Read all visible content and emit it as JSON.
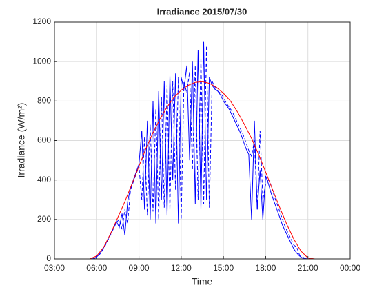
{
  "chart_data": {
    "type": "line",
    "title": "Irradiance 2015/07/30",
    "xlabel": "Time",
    "ylabel": "Irradiance (W/m²)",
    "xlim": [
      3,
      24
    ],
    "xticks": [
      {
        "value": 3,
        "label": "03:00"
      },
      {
        "value": 6,
        "label": "06:00"
      },
      {
        "value": 9,
        "label": "09:00"
      },
      {
        "value": 12,
        "label": "12:00"
      },
      {
        "value": 15,
        "label": "15:00"
      },
      {
        "value": 18,
        "label": "18:00"
      },
      {
        "value": 21,
        "label": "21:00"
      },
      {
        "value": 24,
        "label": "00:00"
      }
    ],
    "ylim": [
      0,
      1200
    ],
    "yticks": [
      0,
      200,
      400,
      600,
      800,
      1000,
      1200
    ],
    "grid": true,
    "x": [
      5.4,
      5.6,
      5.8,
      6.0,
      6.2,
      6.4,
      6.6,
      6.8,
      7.0,
      7.2,
      7.4,
      7.6,
      7.8,
      8.0,
      8.2,
      8.4,
      8.6,
      8.8,
      9.0,
      9.2,
      9.4,
      9.6,
      9.8,
      10.0,
      10.2,
      10.4,
      10.6,
      10.8,
      11.0,
      11.2,
      11.4,
      11.6,
      11.8,
      12.0,
      12.2,
      12.4,
      12.6,
      12.8,
      13.0,
      13.2,
      13.4,
      13.6,
      13.8,
      14.0,
      14.2,
      14.4,
      14.6,
      14.8,
      15.0,
      15.2,
      15.4,
      15.6,
      15.8,
      16.0,
      16.2,
      16.4,
      16.6,
      16.8,
      17.0,
      17.2,
      17.4,
      17.6,
      17.8,
      18.0,
      18.2,
      18.4,
      18.6,
      18.8,
      19.0,
      19.2,
      19.4,
      19.6,
      19.8,
      20.0,
      20.2,
      20.4,
      20.6,
      20.8,
      21.0,
      21.2,
      21.4
    ],
    "series": [
      {
        "color": "#0000ff",
        "line_style": "solid",
        "values": [
          0,
          0,
          2,
          10,
          25,
          45,
          70,
          100,
          130,
          160,
          190,
          160,
          230,
          120,
          290,
          360,
          400,
          440,
          480,
          650,
          250,
          700,
          200,
          800,
          180,
          850,
          300,
          900,
          220,
          930,
          400,
          940,
          180,
          920,
          860,
          980,
          500,
          1000,
          280,
          1060,
          250,
          1100,
          300,
          920,
          880,
          860,
          850,
          830,
          800,
          780,
          760,
          730,
          700,
          670,
          640,
          600,
          560,
          530,
          200,
          700,
          250,
          450,
          200,
          420,
          380,
          330,
          290,
          250,
          210,
          170,
          140,
          110,
          80,
          50,
          30,
          15,
          5,
          2,
          0,
          0,
          0
        ]
      },
      {
        "color": "#0000ff",
        "line_style": "dashed",
        "values": [
          0,
          0,
          1,
          8,
          22,
          42,
          66,
          95,
          125,
          155,
          185,
          200,
          150,
          250,
          180,
          350,
          390,
          430,
          470,
          300,
          620,
          220,
          680,
          240,
          760,
          200,
          820,
          260,
          880,
          250,
          900,
          350,
          920,
          200,
          900,
          840,
          950,
          450,
          980,
          300,
          1020,
          280,
          1080,
          260,
          900,
          870,
          850,
          840,
          820,
          790,
          770,
          750,
          720,
          690,
          660,
          630,
          590,
          550,
          520,
          600,
          250,
          650,
          300,
          380,
          400,
          370,
          320,
          280,
          240,
          200,
          160,
          130,
          100,
          70,
          60,
          20,
          10,
          3,
          1,
          0,
          0
        ]
      },
      {
        "color": "#ff0000",
        "line_style": "solid",
        "x": [
          5.5,
          6,
          6.5,
          7,
          7.5,
          8,
          8.5,
          9,
          9.5,
          10,
          10.5,
          11,
          11.5,
          12,
          12.5,
          13,
          13.5,
          14,
          14.5,
          15,
          15.5,
          16,
          16.5,
          17,
          17.5,
          18,
          18.5,
          19,
          19.5,
          20,
          20.5,
          21,
          21.5
        ],
        "values": [
          0,
          15,
          60,
          130,
          210,
          290,
          380,
          470,
          560,
          640,
          710,
          770,
          820,
          855,
          880,
          895,
          898,
          890,
          870,
          840,
          800,
          745,
          680,
          610,
          530,
          440,
          350,
          260,
          175,
          100,
          40,
          5,
          0
        ]
      }
    ]
  }
}
